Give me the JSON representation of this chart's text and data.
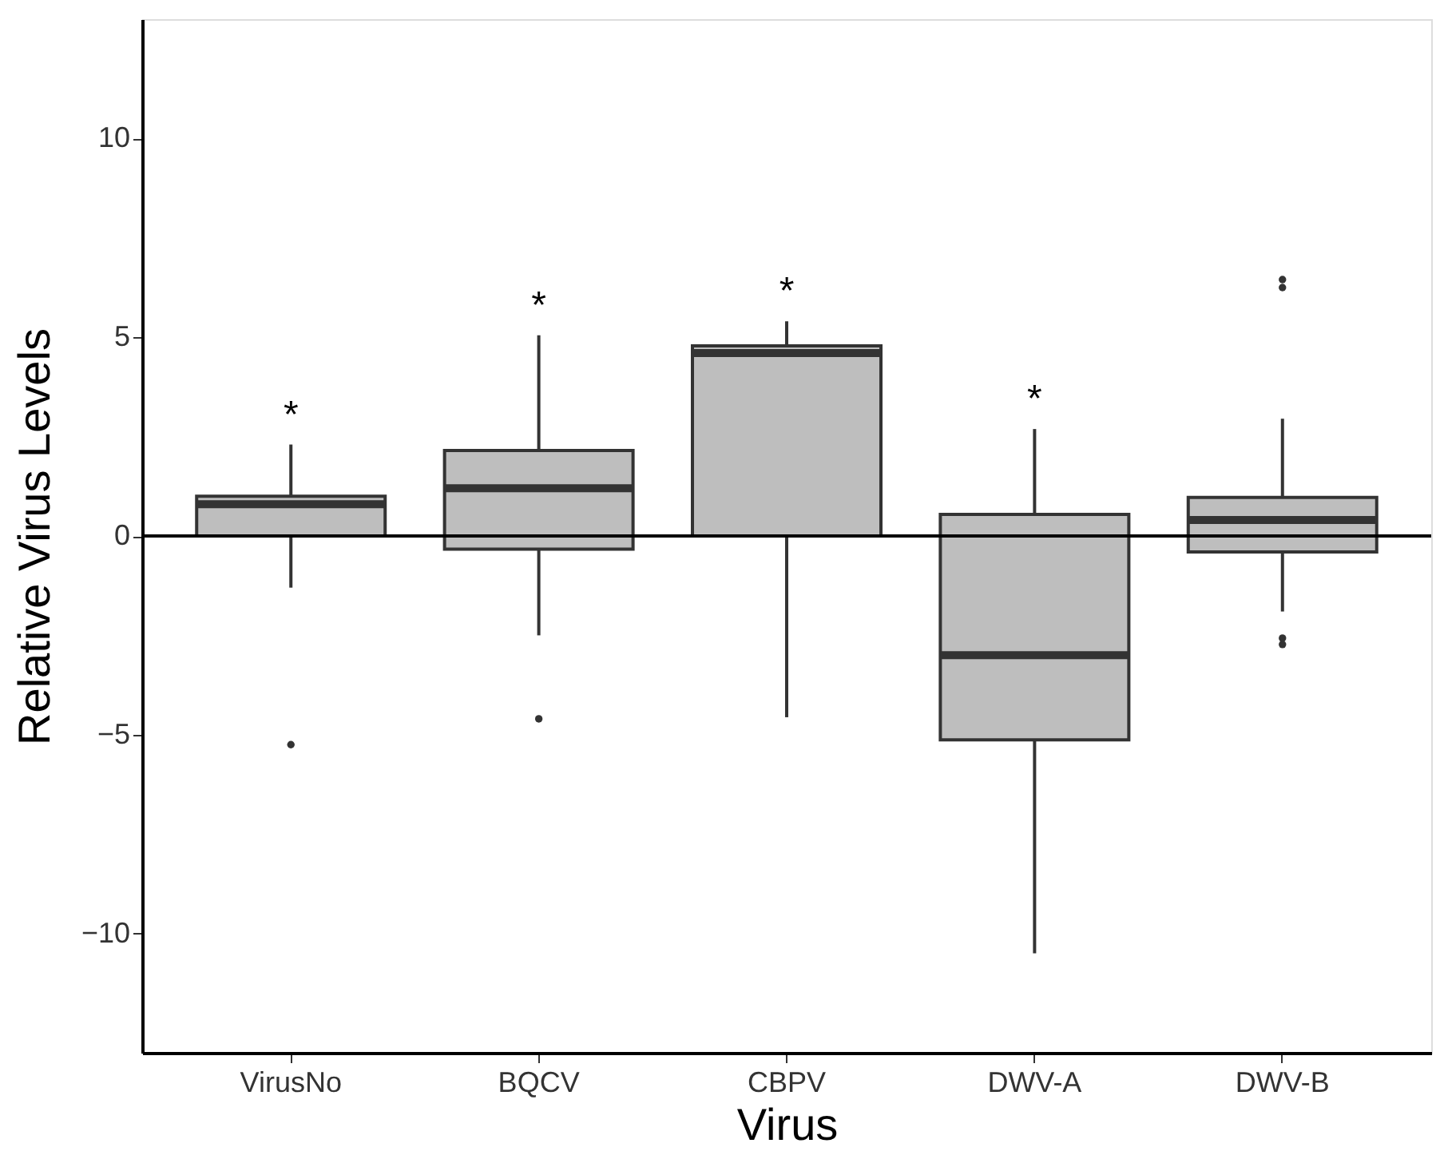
{
  "chart_data": {
    "type": "box",
    "xlabel": "Virus",
    "ylabel": "Relative Virus Levels",
    "categories": [
      "VirusNo",
      "BQCV",
      "CBPV",
      "DWV-A",
      "DWV-B"
    ],
    "series": [
      {
        "color": "#bebebe",
        "boxes": [
          {
            "low": -1.3,
            "q1": 0,
            "median": 0.8,
            "q3": 1.0,
            "high": 2.3,
            "outliers": [
              -5.25
            ]
          },
          {
            "low": -2.5,
            "q1": -0.33,
            "median": 1.2,
            "q3": 2.15,
            "high": 5.05,
            "outliers": [
              -4.6
            ]
          },
          {
            "low": -4.56,
            "q1": 0,
            "median": 4.6,
            "q3": 4.78,
            "high": 5.4
          },
          {
            "low": -10.5,
            "q1": -5.13,
            "median": -3.0,
            "q3": 0.54,
            "high": 2.69
          },
          {
            "low": -1.9,
            "q1": -0.4,
            "median": 0.4,
            "q3": 0.97,
            "high": 2.95,
            "outliers": [
              6.45,
              6.25,
              -2.57,
              -2.73
            ]
          }
        ]
      }
    ],
    "ylim": [
      -13,
      13
    ],
    "yticks": [
      -10,
      -5,
      0,
      5,
      10
    ],
    "grid": false,
    "ref_lines": [
      {
        "axis": "y",
        "value": 0,
        "color": "#000000"
      }
    ],
    "annotations": [
      "*",
      "*",
      "*",
      "*"
    ]
  }
}
